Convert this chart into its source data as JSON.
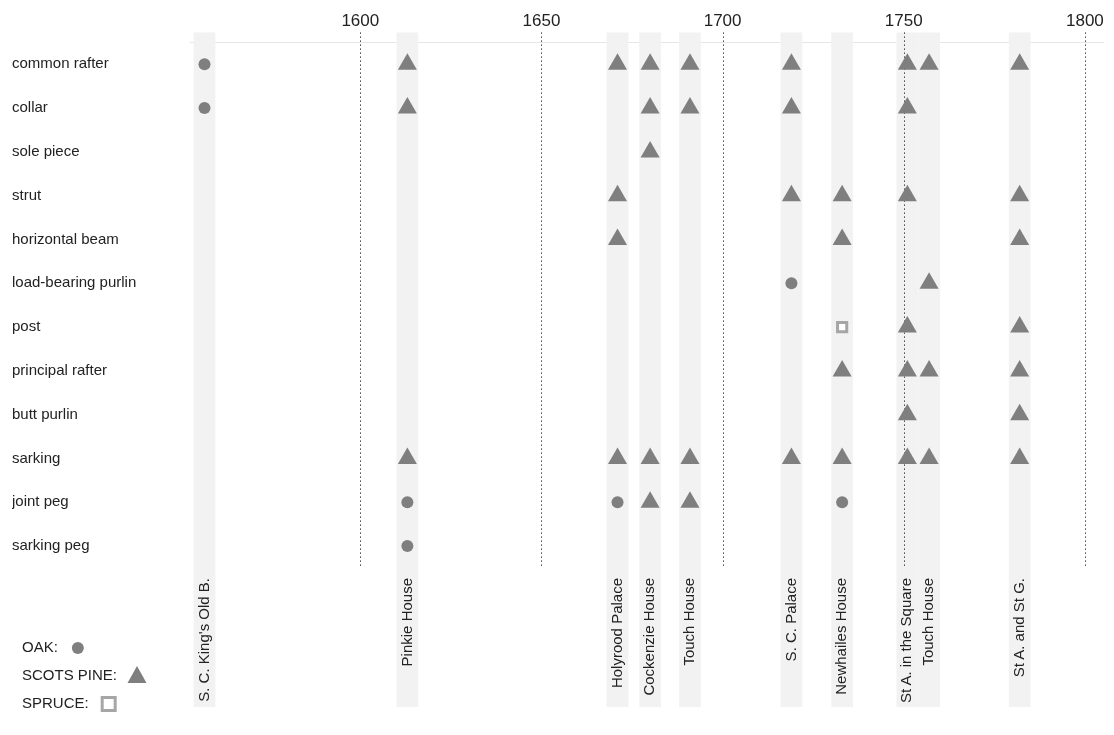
{
  "chart_data": {
    "type": "scatter",
    "orientation": "horizontal",
    "categories": [
      "common rafter",
      "collar",
      "sole piece",
      "strut",
      "horizontal beam",
      "load-bearing purlin",
      "post",
      "principal rafter",
      "butt purlin",
      "sarking",
      "joint peg",
      "sarking peg"
    ],
    "xlim": [
      1553,
      1805
    ],
    "xticks": [
      1600,
      1650,
      1700,
      1750,
      1800
    ],
    "grid": "x",
    "legend": "bottom left",
    "series": [
      {
        "name": "OAK:",
        "color": "#7f7f7f",
        "marker": "circle",
        "x": [
          "common rafter",
          "collar",
          "load-bearing purlin",
          "joint peg",
          "joint peg",
          "joint peg",
          "sarking peg"
        ],
        "values": [
          1557,
          1557,
          1719,
          1613,
          1671,
          1733,
          1613
        ]
      },
      {
        "name": "SCOTS PINE:",
        "color": "#7f7f7f",
        "marker": "triangle",
        "x": [
          "common rafter",
          "common rafter",
          "common rafter",
          "common rafter",
          "common rafter",
          "common rafter",
          "common rafter",
          "common rafter",
          "collar",
          "collar",
          "collar",
          "collar",
          "collar",
          "sole piece",
          "strut",
          "strut",
          "strut",
          "strut",
          "strut",
          "horizontal beam",
          "horizontal beam",
          "horizontal beam",
          "load-bearing purlin",
          "post",
          "post",
          "principal rafter",
          "principal rafter",
          "principal rafter",
          "principal rafter",
          "butt purlin",
          "butt purlin",
          "sarking",
          "sarking",
          "sarking",
          "sarking",
          "sarking",
          "sarking",
          "sarking",
          "sarking",
          "sarking",
          "joint peg",
          "joint peg"
        ],
        "values": [
          1613,
          1671,
          1680,
          1691,
          1719,
          1751,
          1757,
          1782,
          1613,
          1680,
          1691,
          1719,
          1751,
          1680,
          1671,
          1719,
          1733,
          1751,
          1782,
          1671,
          1733,
          1782,
          1757,
          1751,
          1782,
          1733,
          1751,
          1757,
          1782,
          1751,
          1782,
          1613,
          1671,
          1680,
          1691,
          1719,
          1733,
          1751,
          1757,
          1782,
          1680,
          1691
        ]
      },
      {
        "name": "SPRUCE:",
        "color": "#a6a6a6",
        "marker": "square",
        "x": [
          "post"
        ],
        "values": [
          1733
        ]
      }
    ],
    "bands": [
      {
        "axis": "x",
        "from": 1554,
        "to": 1560,
        "label": "S. C. King's Old B.",
        "color": "#f2f2f2"
      },
      {
        "axis": "x",
        "from": 1610,
        "to": 1616,
        "label": "Pinkie House",
        "color": "#f2f2f2"
      },
      {
        "axis": "x",
        "from": 1668,
        "to": 1674,
        "label": "Holyrood Palace",
        "color": "#f2f2f2"
      },
      {
        "axis": "x",
        "from": 1677,
        "to": 1683,
        "label": "Cockenzie House",
        "color": "#f2f2f2"
      },
      {
        "axis": "x",
        "from": 1688,
        "to": 1694,
        "label": "Touch House",
        "color": "#f2f2f2"
      },
      {
        "axis": "x",
        "from": 1716,
        "to": 1722,
        "label": "S. C. Palace",
        "color": "#f2f2f2"
      },
      {
        "axis": "x",
        "from": 1730,
        "to": 1736,
        "label": "Newhailes House",
        "color": "#f2f2f2"
      },
      {
        "axis": "x",
        "from": 1748,
        "to": 1754,
        "label": "St A. in the Square",
        "color": "#f2f2f2"
      },
      {
        "axis": "x",
        "from": 1754,
        "to": 1760,
        "label": "Touch House",
        "color": "#f2f2f2"
      },
      {
        "axis": "x",
        "from": 1779,
        "to": 1785,
        "label": "St A. and St G.",
        "color": "#f2f2f2"
      }
    ]
  }
}
